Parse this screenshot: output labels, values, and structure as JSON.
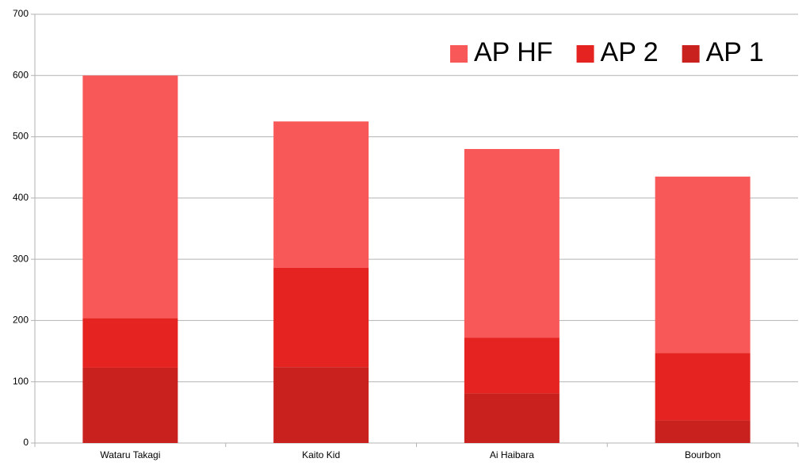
{
  "chart_data": {
    "type": "stacked-bar",
    "categories": [
      "Wataru Takagi",
      "Kaito Kid",
      "Ai Haibara",
      "Bourbon"
    ],
    "series": [
      {
        "name": "AP 1",
        "color": "#c9211e",
        "values": [
          123,
          124,
          81,
          37
        ]
      },
      {
        "name": "AP 2",
        "color": "#e52421",
        "values": [
          81,
          162,
          91,
          110
        ]
      },
      {
        "name": "AP HF",
        "color": "#f95858",
        "values": [
          396,
          239,
          308,
          288
        ]
      }
    ],
    "ylim": [
      0,
      700
    ],
    "yticks": [
      0,
      100,
      200,
      300,
      400,
      500,
      600,
      700
    ],
    "grid": true,
    "legend": "top-right"
  }
}
